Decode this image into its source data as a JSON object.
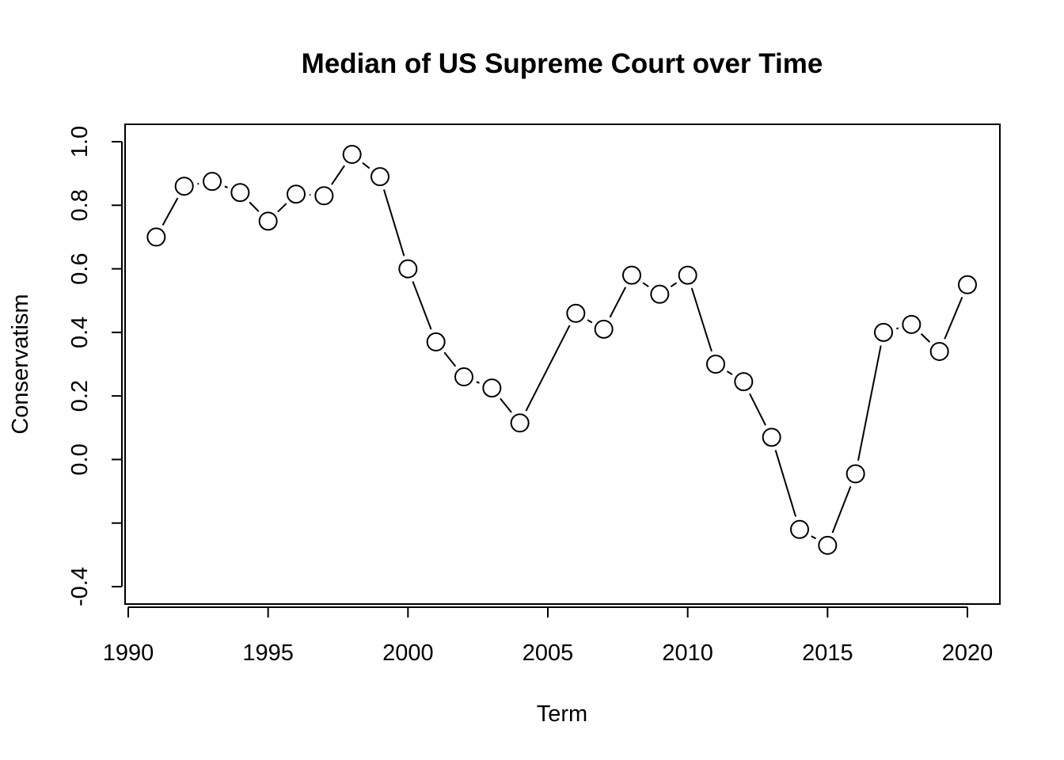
{
  "chart_data": {
    "type": "line",
    "title": "Median of US Supreme Court over Time",
    "xlabel": "Term",
    "ylabel": "Conservatism",
    "x": [
      1991,
      1992,
      1993,
      1994,
      1995,
      1996,
      1997,
      1998,
      1999,
      2000,
      2001,
      2002,
      2003,
      2004,
      2006,
      2007,
      2008,
      2009,
      2010,
      2011,
      2012,
      2013,
      2014,
      2015,
      2016,
      2017,
      2018,
      2019,
      2020
    ],
    "series": [
      {
        "values": [
          0.7,
          0.86,
          0.875,
          0.84,
          0.75,
          0.835,
          0.83,
          0.96,
          0.89,
          0.6,
          0.37,
          0.26,
          0.225,
          0.115,
          0.46,
          0.41,
          0.58,
          0.52,
          0.58,
          0.3,
          0.245,
          0.07,
          -0.22,
          -0.27,
          -0.045,
          0.4,
          0.425,
          0.34,
          0.55
        ]
      }
    ],
    "xlim": [
      1990,
      2020
    ],
    "ylim": [
      -0.4,
      1.0
    ],
    "xticks": [
      "1990",
      "1995",
      "2000",
      "2005",
      "2010",
      "2015",
      "2020"
    ],
    "yticks": [
      "-0.4",
      "",
      "0.0",
      "0.2",
      "0.4",
      "0.6",
      "0.8",
      "1.0"
    ],
    "ytick_values": [
      -0.4,
      -0.2,
      0.0,
      0.2,
      0.4,
      0.6,
      0.8,
      1.0
    ],
    "xtick_values": [
      1990,
      1995,
      2000,
      2005,
      2010,
      2015,
      2020
    ],
    "grid": false,
    "line_color": "#000000",
    "marker_fill": "#ffffff"
  }
}
